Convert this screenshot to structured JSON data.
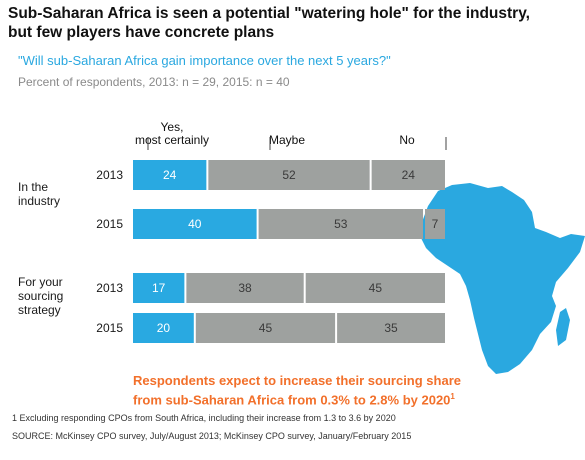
{
  "header": {
    "title_line1": "Sub-Saharan Africa is seen a potential \"watering hole\" for the industry,",
    "title_line2": "but few players have concrete plans",
    "question": "\"Will sub-Saharan Africa gain importance over the next 5 years?\"",
    "base_note": "Percent of respondents, 2013: n = 29, 2015: n = 40"
  },
  "colors": {
    "yes": "#29a9e1",
    "maybe": "#9ea19f",
    "no": "#9ea19f",
    "africa": "#2aa8e0",
    "callout": "#f2702b"
  },
  "chart_data": {
    "type": "bar",
    "orientation": "horizontal",
    "stacked": true,
    "column_headers": [
      "Yes, most certainly",
      "Maybe",
      "No"
    ],
    "groups": [
      {
        "label": "In the industry",
        "rows": [
          {
            "year": "2013",
            "values": [
              24,
              52,
              24
            ]
          },
          {
            "year": "2015",
            "values": [
              40,
              53,
              7
            ]
          }
        ]
      },
      {
        "label": "For your sourcing strategy",
        "rows": [
          {
            "year": "2013",
            "values": [
              17,
              38,
              45
            ]
          },
          {
            "year": "2015",
            "values": [
              20,
              45,
              35
            ]
          }
        ]
      }
    ]
  },
  "callout": {
    "line1": "Respondents expect to increase their sourcing share",
    "line2": "from sub-Saharan Africa from 0.3% to 2.8% by 2020",
    "superscript": "1"
  },
  "footnote": "1 Excluding responding CPOs from South Africa, including their increase from 1.3 to 3.6 by 2020",
  "source": "SOURCE: McKinsey CPO survey, July/August 2013; McKinsey CPO survey, January/February 2015"
}
